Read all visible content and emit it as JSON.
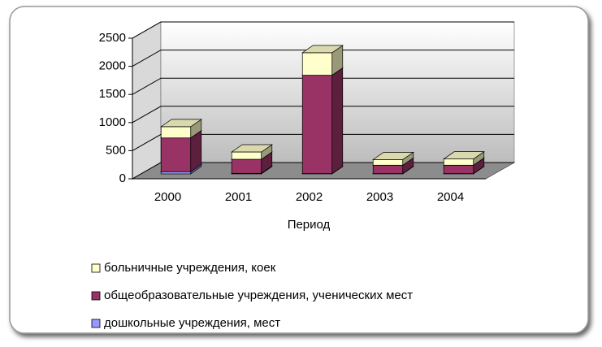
{
  "chart_data": {
    "type": "bar3d_stacked",
    "categories": [
      "2000",
      "2001",
      "2002",
      "2003",
      "2004"
    ],
    "x_label": "Период",
    "series": [
      {
        "name": "дошкольные учреждения, мест",
        "color": "#9999ff",
        "values": [
          40,
          10,
          5,
          5,
          5
        ]
      },
      {
        "name": "общеобразовательные учреждения, ученических мест",
        "color": "#993366",
        "values": [
          600,
          250,
          1750,
          150,
          150
        ]
      },
      {
        "name": "больничные учреждения, коек",
        "color": "#ffffcc",
        "values": [
          200,
          130,
          400,
          100,
          110
        ]
      }
    ],
    "ylim": [
      0,
      2500
    ],
    "yticks": [
      0,
      500,
      1000,
      1500,
      2000,
      2500
    ],
    "grid": true
  }
}
